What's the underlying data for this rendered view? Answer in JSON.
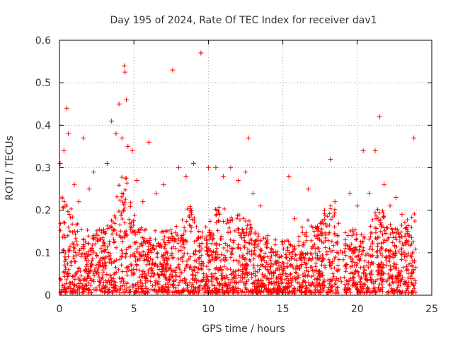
{
  "chart_data": {
    "type": "scatter",
    "title": "Day 195 of 2024, Rate Of TEC Index for receiver dav1",
    "xlabel": "GPS time / hours",
    "ylabel": "ROTI / TECUs",
    "xlim": [
      0,
      25
    ],
    "ylim": [
      0,
      0.6
    ],
    "x_ticks": [
      "0",
      "5",
      "10",
      "15",
      "20",
      "25"
    ],
    "y_ticks": [
      "0",
      "0.1",
      "0.2",
      "0.3",
      "0.4",
      "0.5",
      "0.6"
    ],
    "grid": true,
    "marker": "plus",
    "marker_color": "#ff0000",
    "series": [
      {
        "name": "dav1",
        "x": [
          0.05,
          0.3,
          0.5,
          0.6,
          1.0,
          1.3,
          1.6,
          2.0,
          2.3,
          3.2,
          3.5,
          3.8,
          4.0,
          4.2,
          4.35,
          4.4,
          4.5,
          4.6,
          4.9,
          5.2,
          5.6,
          6.0,
          6.5,
          7.0,
          7.6,
          8.0,
          8.5,
          9.0,
          9.5,
          10.0,
          10.5,
          11.0,
          11.5,
          12.0,
          12.5,
          12.7,
          13.0,
          13.5,
          14.0,
          14.5,
          15.0,
          15.4,
          15.8,
          16.3,
          16.7,
          17.2,
          17.8,
          18.2,
          18.5,
          19.0,
          19.5,
          20.0,
          20.4,
          20.8,
          21.2,
          21.5,
          21.8,
          22.2,
          22.6,
          23.0,
          23.4,
          23.8
        ],
        "y": [
          0.31,
          0.34,
          0.44,
          0.38,
          0.26,
          0.22,
          0.37,
          0.25,
          0.29,
          0.31,
          0.41,
          0.38,
          0.45,
          0.37,
          0.54,
          0.525,
          0.46,
          0.35,
          0.34,
          0.27,
          0.22,
          0.36,
          0.24,
          0.26,
          0.53,
          0.3,
          0.28,
          0.31,
          0.57,
          0.3,
          0.3,
          0.28,
          0.3,
          0.27,
          0.29,
          0.37,
          0.24,
          0.21,
          0.14,
          0.13,
          0.12,
          0.28,
          0.18,
          0.16,
          0.25,
          0.16,
          0.2,
          0.32,
          0.22,
          0.1,
          0.24,
          0.21,
          0.34,
          0.24,
          0.34,
          0.42,
          0.26,
          0.21,
          0.23,
          0.19,
          0.15,
          0.37
        ],
        "note": "Dense band of ROTI values between about 0.02 and 0.2 TECUs across the whole day; listed points are the visible upper envelope and outliers."
      }
    ]
  }
}
